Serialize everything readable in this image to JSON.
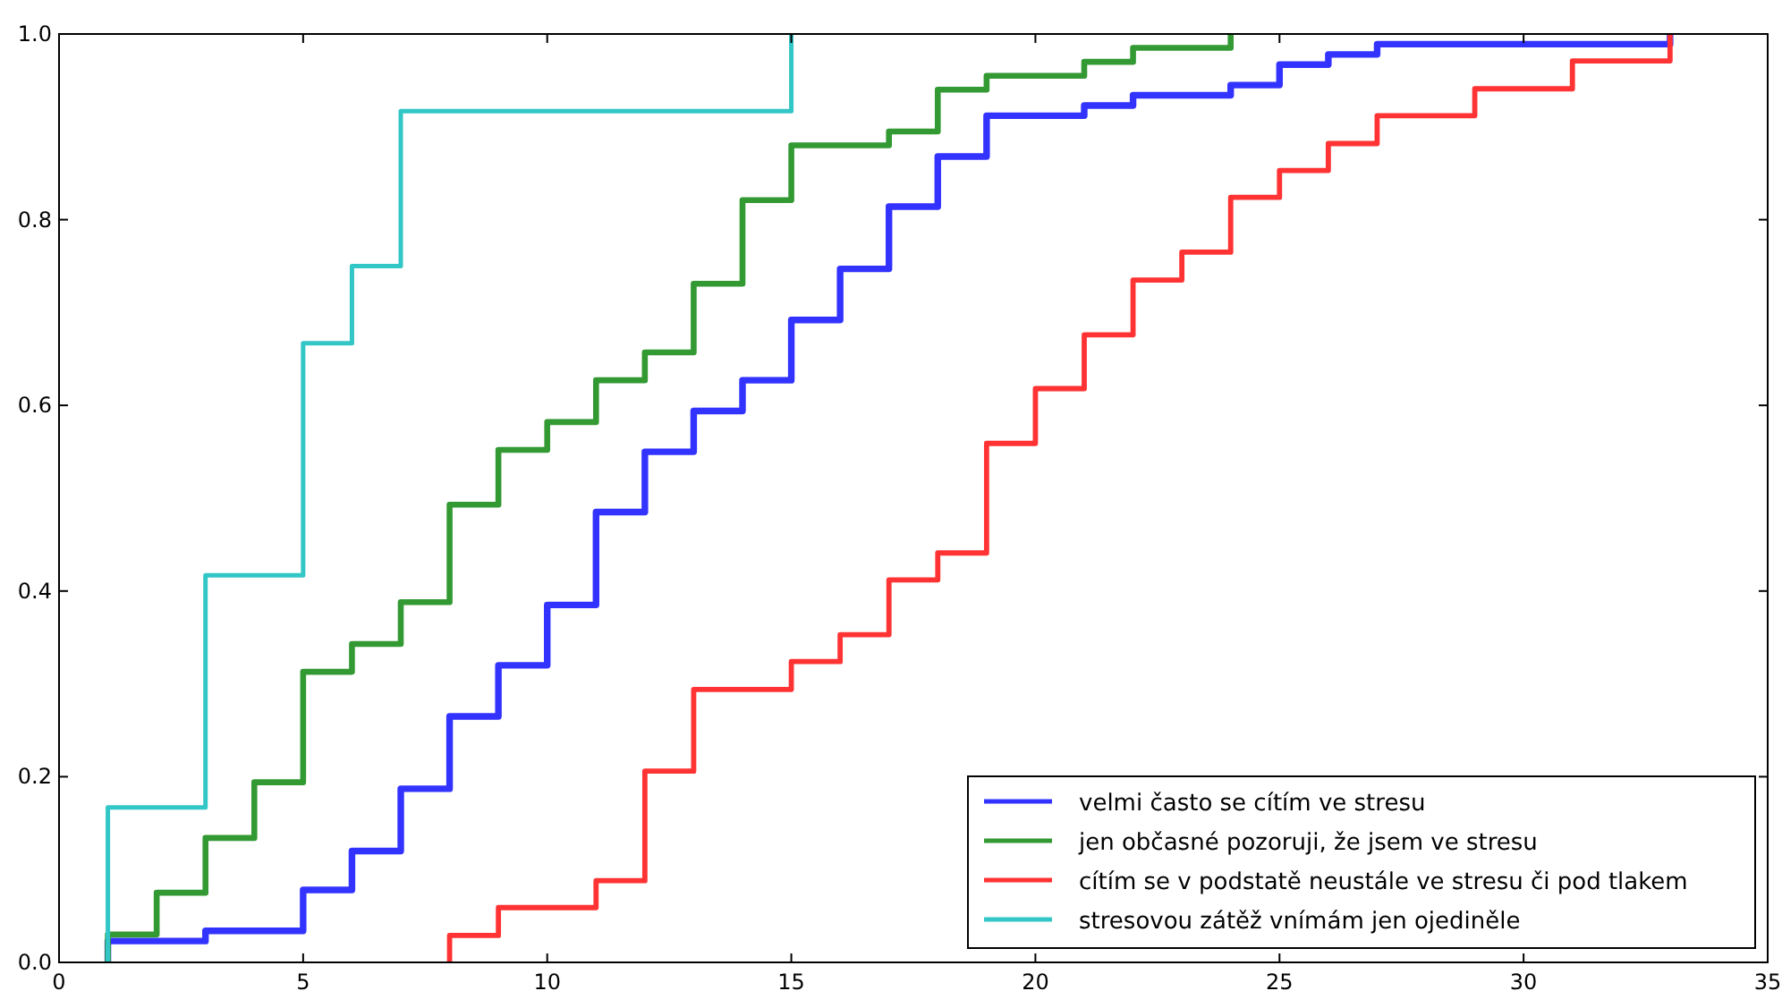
{
  "chart_data": {
    "type": "step",
    "xlim": [
      0,
      35
    ],
    "xticks": [
      0,
      5,
      10,
      15,
      20,
      25,
      30,
      35
    ],
    "ylim": [
      0,
      1
    ],
    "yticks": [
      {
        "value": 0,
        "label": "0.0"
      },
      {
        "value": 0.2,
        "label": "0.2"
      },
      {
        "value": 0.4,
        "label": "0.4"
      },
      {
        "value": 0.6,
        "label": "0.6"
      },
      {
        "value": 0.8,
        "label": "0.8"
      },
      {
        "value": 1,
        "label": "1.0"
      }
    ],
    "legend": "bottom right",
    "line_style": "solid",
    "marker": "none",
    "series": [
      {
        "name": "velmi často se cítím ve stresu",
        "color": "#3333ff",
        "x": [
          1,
          1,
          3,
          5,
          6,
          7,
          8,
          9,
          10,
          11,
          12,
          13,
          14,
          15,
          16,
          17,
          18,
          19,
          21,
          22,
          24,
          25,
          26,
          27,
          33
        ],
        "values": [
          0,
          0.023,
          0.034,
          0.078,
          0.12,
          0.187,
          0.265,
          0.32,
          0.385,
          0.485,
          0.55,
          0.594,
          0.627,
          0.692,
          0.747,
          0.814,
          0.868,
          0.912,
          0.923,
          0.934,
          0.945,
          0.967,
          0.978,
          0.989,
          1.0
        ]
      },
      {
        "name": "jen občasné pozoruji, že jsem ve stresu",
        "color": "#339933",
        "x": [
          1,
          1,
          2,
          3,
          4,
          5,
          6,
          7,
          8,
          9,
          10,
          11,
          12,
          13,
          14,
          15,
          17,
          18,
          19,
          21,
          22,
          24
        ],
        "values": [
          0,
          0.03,
          0.075,
          0.134,
          0.194,
          0.313,
          0.343,
          0.388,
          0.493,
          0.552,
          0.582,
          0.627,
          0.657,
          0.731,
          0.821,
          0.88,
          0.895,
          0.94,
          0.955,
          0.97,
          0.985,
          1.0
        ]
      },
      {
        "name": "cítím se v podstatě neustále ve stresu či pod tlakem",
        "color": "#ff3333",
        "x": [
          8,
          8,
          9,
          11,
          12,
          13,
          15,
          16,
          17,
          18,
          19,
          20,
          21,
          22,
          23,
          24,
          25,
          26,
          27,
          29,
          31,
          33
        ],
        "values": [
          0,
          0.029,
          0.059,
          0.088,
          0.206,
          0.294,
          0.324,
          0.353,
          0.412,
          0.441,
          0.559,
          0.618,
          0.676,
          0.735,
          0.765,
          0.824,
          0.853,
          0.882,
          0.912,
          0.941,
          0.971,
          1.0
        ]
      },
      {
        "name": "stresovou zátěž vnímám jen ojediněle",
        "color": "#33c6c6",
        "x": [
          1,
          1,
          3,
          5,
          6,
          7,
          15
        ],
        "values": [
          0,
          0.167,
          0.417,
          0.667,
          0.75,
          0.917,
          1.0
        ]
      }
    ]
  }
}
